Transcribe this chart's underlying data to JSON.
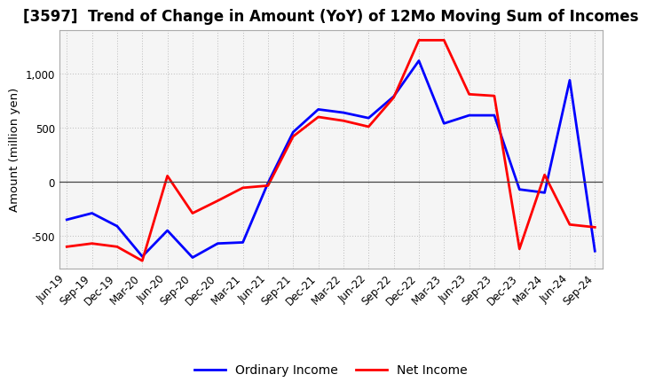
{
  "title": "[3597]  Trend of Change in Amount (YoY) of 12Mo Moving Sum of Incomes",
  "ylabel": "Amount (million yen)",
  "x_labels": [
    "Jun-19",
    "Sep-19",
    "Dec-19",
    "Mar-20",
    "Jun-20",
    "Sep-20",
    "Dec-20",
    "Mar-21",
    "Jun-21",
    "Sep-21",
    "Dec-21",
    "Mar-22",
    "Jun-22",
    "Sep-22",
    "Dec-22",
    "Mar-23",
    "Jun-23",
    "Sep-23",
    "Dec-23",
    "Mar-24",
    "Jun-24",
    "Sep-24"
  ],
  "ordinary_income": [
    -350,
    -290,
    -410,
    -690,
    -450,
    -700,
    -570,
    -560,
    -10,
    460,
    670,
    640,
    590,
    790,
    1120,
    540,
    615,
    615,
    -70,
    -100,
    940,
    -640
  ],
  "net_income": [
    -600,
    -570,
    -600,
    -730,
    55,
    -290,
    -175,
    -55,
    -35,
    420,
    600,
    565,
    510,
    780,
    1310,
    1310,
    810,
    795,
    -620,
    65,
    -395,
    -420
  ],
  "ordinary_color": "#0000ff",
  "net_color": "#ff0000",
  "background_color": "#ffffff",
  "plot_bg_color": "#f5f5f5",
  "grid_color": "#bbbbbb",
  "ylim": [
    -800,
    1400
  ],
  "yticks": [
    -500,
    0,
    500,
    1000
  ],
  "legend_labels": [
    "Ordinary Income",
    "Net Income"
  ],
  "title_fontsize": 12,
  "axis_fontsize": 9.5,
  "tick_fontsize": 8.5,
  "line_width": 2.0
}
